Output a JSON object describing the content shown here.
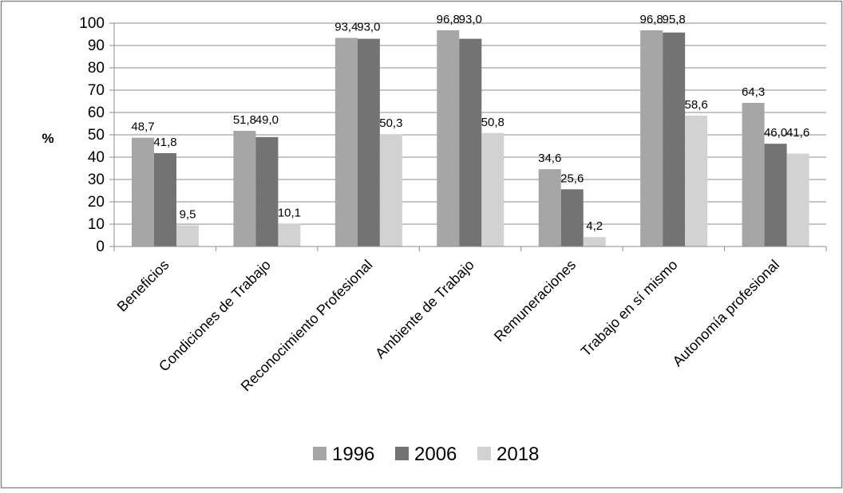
{
  "chart_data": {
    "type": "bar",
    "ylabel": "%",
    "ylim": [
      0,
      100
    ],
    "yticks": [
      0,
      10,
      20,
      30,
      40,
      50,
      60,
      70,
      80,
      90,
      100
    ],
    "grid": true,
    "legend_position": "bottom",
    "categories": [
      "Beneficios",
      "Condiciones de Trabajo",
      "Reconocimiento Profesional",
      "Ambiente de Trabajo",
      "Remuneraciones",
      "Trabajo en sí mismo",
      "Autonomía profesional"
    ],
    "series": [
      {
        "name": "1996",
        "color": "#a6a6a6",
        "values": [
          48.7,
          51.8,
          93.4,
          96.8,
          34.6,
          96.8,
          64.3
        ],
        "labels": [
          "48,7",
          "51,8",
          "93,4",
          "96,8",
          "34,6",
          "96,8",
          "64,3"
        ]
      },
      {
        "name": "2006",
        "color": "#737373",
        "values": [
          41.8,
          49.0,
          93.0,
          93.0,
          25.6,
          95.8,
          46.0
        ],
        "labels": [
          "41,8",
          "49,0",
          "93,0",
          "93,0",
          "25,6",
          "95,8",
          "46,0"
        ]
      },
      {
        "name": "2018",
        "color": "#d2d2d2",
        "values": [
          9.5,
          10.1,
          50.3,
          50.8,
          4.2,
          58.6,
          41.6
        ],
        "labels": [
          "9,5",
          "10,1",
          "50,3",
          "50,8",
          "4,2",
          "58,6",
          "41,6"
        ]
      }
    ]
  }
}
